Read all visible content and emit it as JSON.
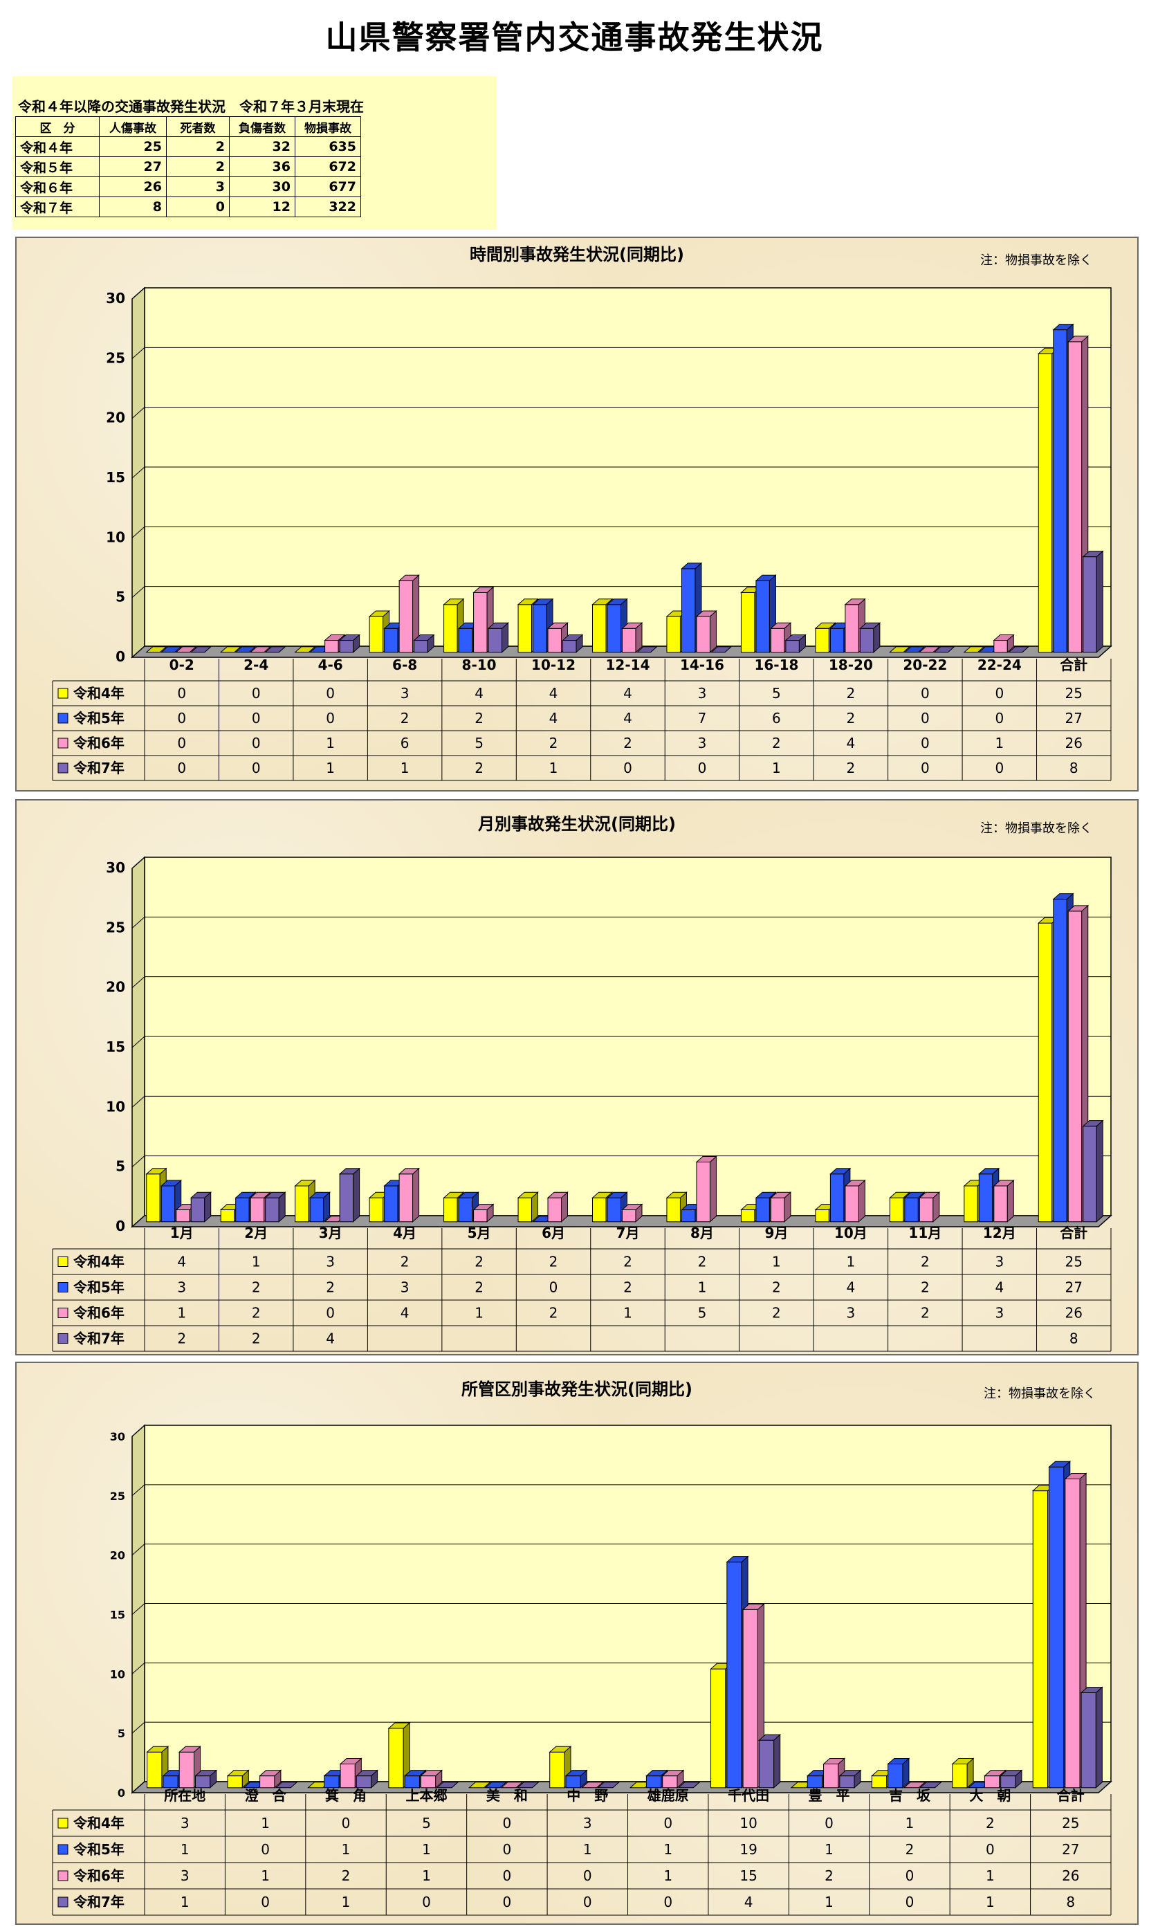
{
  "page_title": "山県警察署管内交通事故発生状況",
  "summary": {
    "caption": "令和４年以降の交通事故発生状況　令和７年３月末現在",
    "headers": [
      "区　分",
      "人傷事故",
      "死者数",
      "負傷者数",
      "物損事故"
    ],
    "rows": [
      [
        "令和４年",
        "25",
        "2",
        "32",
        "635"
      ],
      [
        "令和５年",
        "27",
        "2",
        "36",
        "672"
      ],
      [
        "令和６年",
        "26",
        "3",
        "30",
        "677"
      ],
      [
        "令和７年",
        "8",
        "0",
        "12",
        "322"
      ]
    ]
  },
  "colors": {
    "series": [
      "#ffff00",
      "#2e5cff",
      "#ff99cc",
      "#7b68b8"
    ],
    "plot_fill": "#ffffc4",
    "wall": "#d9d99a"
  },
  "chart_data": [
    {
      "type": "bar",
      "title": "時間別事故発生状況(同期比)",
      "note": "注：物損事故を除く",
      "ylim": [
        0,
        30
      ],
      "yticks": [
        "0",
        "5",
        "10",
        "15",
        "20",
        "25",
        "30"
      ],
      "categories": [
        "0-2",
        "2-4",
        "4-6",
        "6-8",
        "8-10",
        "10-12",
        "12-14",
        "14-16",
        "16-18",
        "18-20",
        "20-22",
        "22-24",
        "合計"
      ],
      "series": [
        {
          "name": "令和4年",
          "values": [
            0,
            0,
            0,
            3,
            4,
            4,
            4,
            3,
            5,
            2,
            0,
            0,
            25
          ],
          "labels": [
            "0",
            "0",
            "0",
            "3",
            "4",
            "4",
            "4",
            "3",
            "5",
            "2",
            "0",
            "0",
            "25"
          ]
        },
        {
          "name": "令和5年",
          "values": [
            0,
            0,
            0,
            2,
            2,
            4,
            4,
            7,
            6,
            2,
            0,
            0,
            27
          ],
          "labels": [
            "0",
            "0",
            "0",
            "2",
            "2",
            "4",
            "4",
            "7",
            "6",
            "2",
            "0",
            "0",
            "27"
          ]
        },
        {
          "name": "令和6年",
          "values": [
            0,
            0,
            1,
            6,
            5,
            2,
            2,
            3,
            2,
            4,
            0,
            1,
            26
          ],
          "labels": [
            "0",
            "0",
            "1",
            "6",
            "5",
            "2",
            "2",
            "3",
            "2",
            "4",
            "0",
            "1",
            "26"
          ]
        },
        {
          "name": "令和7年",
          "values": [
            0,
            0,
            1,
            1,
            2,
            1,
            0,
            0,
            1,
            2,
            0,
            0,
            8
          ],
          "labels": [
            "0",
            "0",
            "1",
            "1",
            "2",
            "1",
            "0",
            "0",
            "1",
            "2",
            "0",
            "0",
            "8"
          ]
        }
      ]
    },
    {
      "type": "bar",
      "title": "月別事故発生状況(同期比)",
      "note": "注：物損事故を除く",
      "ylim": [
        0,
        30
      ],
      "yticks": [
        "0",
        "5",
        "10",
        "15",
        "20",
        "25",
        "30"
      ],
      "categories": [
        "1月",
        "2月",
        "3月",
        "4月",
        "5月",
        "6月",
        "7月",
        "8月",
        "9月",
        "10月",
        "11月",
        "12月",
        "合計"
      ],
      "series": [
        {
          "name": "令和4年",
          "values": [
            4,
            1,
            3,
            2,
            2,
            2,
            2,
            2,
            1,
            1,
            2,
            3,
            25
          ],
          "labels": [
            "4",
            "1",
            "3",
            "2",
            "2",
            "2",
            "2",
            "2",
            "1",
            "1",
            "2",
            "3",
            "25"
          ]
        },
        {
          "name": "令和5年",
          "values": [
            3,
            2,
            2,
            3,
            2,
            0,
            2,
            1,
            2,
            4,
            2,
            4,
            27
          ],
          "labels": [
            "3",
            "2",
            "2",
            "3",
            "2",
            "0",
            "2",
            "1",
            "2",
            "4",
            "2",
            "4",
            "27"
          ]
        },
        {
          "name": "令和6年",
          "values": [
            1,
            2,
            0,
            4,
            1,
            2,
            1,
            5,
            2,
            3,
            2,
            3,
            26
          ],
          "labels": [
            "1",
            "2",
            "0",
            "4",
            "1",
            "2",
            "1",
            "5",
            "2",
            "3",
            "2",
            "3",
            "26"
          ]
        },
        {
          "name": "令和7年",
          "values": [
            2,
            2,
            4,
            null,
            null,
            null,
            null,
            null,
            null,
            null,
            null,
            null,
            8
          ],
          "labels": [
            "2",
            "2",
            "4",
            "",
            "",
            "",
            "",
            "",
            "",
            "",
            "",
            "",
            "8"
          ]
        }
      ]
    },
    {
      "type": "bar",
      "title": "所管区別事故発生状況(同期比)",
      "note": "注：物損事故を除く",
      "ylim": [
        0,
        30
      ],
      "yticks": [
        "0",
        "5",
        "10",
        "15",
        "20",
        "25",
        "30"
      ],
      "categories": [
        "所在地",
        "澄　合",
        "箕　角",
        "上本郷",
        "美　和",
        "中　野",
        "雄鹿原",
        "千代田",
        "豊　平",
        "吉　坂",
        "大　朝",
        "合計"
      ],
      "series": [
        {
          "name": "令和4年",
          "values": [
            3,
            1,
            0,
            5,
            0,
            3,
            0,
            10,
            0,
            1,
            2,
            25
          ],
          "labels": [
            "3",
            "1",
            "0",
            "5",
            "0",
            "3",
            "0",
            "10",
            "0",
            "1",
            "2",
            "25"
          ]
        },
        {
          "name": "令和5年",
          "values": [
            1,
            0,
            1,
            1,
            0,
            1,
            1,
            19,
            1,
            2,
            0,
            27
          ],
          "labels": [
            "1",
            "0",
            "1",
            "1",
            "0",
            "1",
            "1",
            "19",
            "1",
            "2",
            "0",
            "27"
          ]
        },
        {
          "name": "令和6年",
          "values": [
            3,
            1,
            2,
            1,
            0,
            0,
            1,
            15,
            2,
            0,
            1,
            26
          ],
          "labels": [
            "3",
            "1",
            "2",
            "1",
            "0",
            "0",
            "1",
            "15",
            "2",
            "0",
            "1",
            "26"
          ]
        },
        {
          "name": "令和7年",
          "values": [
            1,
            0,
            1,
            0,
            0,
            0,
            0,
            4,
            1,
            0,
            1,
            8
          ],
          "labels": [
            "1",
            "0",
            "1",
            "0",
            "0",
            "0",
            "0",
            "4",
            "1",
            "0",
            "1",
            "8"
          ]
        }
      ]
    }
  ]
}
